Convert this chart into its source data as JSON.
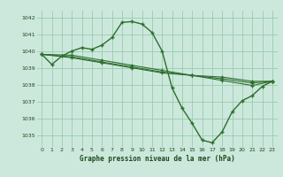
{
  "title": "Graphe pression niveau de la mer (hPa)",
  "bg_color": "#cce8dd",
  "grid_color": "#99ccaa",
  "line_color": "#2d6e2d",
  "marker_color": "#2d6e2d",
  "ylim": [
    1034.3,
    1042.4
  ],
  "xlim": [
    -0.5,
    23.5
  ],
  "yticks": [
    1035,
    1036,
    1037,
    1038,
    1039,
    1040,
    1041,
    1042
  ],
  "xticks": [
    0,
    1,
    2,
    3,
    4,
    5,
    6,
    7,
    8,
    9,
    10,
    11,
    12,
    13,
    14,
    15,
    16,
    17,
    18,
    19,
    20,
    21,
    22,
    23
  ],
  "series1_x": [
    0,
    1,
    2,
    3,
    4,
    5,
    6,
    7,
    8,
    9,
    10,
    11,
    12,
    13,
    14,
    15,
    16,
    17,
    18,
    19,
    20,
    21,
    22,
    23
  ],
  "series1_y": [
    1039.8,
    1039.2,
    1039.7,
    1040.0,
    1040.2,
    1040.1,
    1040.35,
    1040.8,
    1041.7,
    1041.75,
    1041.6,
    1041.1,
    1040.0,
    1037.8,
    1036.6,
    1035.7,
    1034.7,
    1034.55,
    1035.2,
    1036.4,
    1037.05,
    1037.35,
    1037.9,
    1038.2
  ],
  "series2_x": [
    0,
    3,
    6,
    9,
    12,
    15,
    18,
    21,
    23
  ],
  "series2_y": [
    1039.8,
    1039.75,
    1039.45,
    1039.15,
    1038.85,
    1038.55,
    1038.25,
    1037.95,
    1038.2
  ],
  "series3_x": [
    0,
    3,
    6,
    9,
    12,
    15,
    18,
    21,
    23
  ],
  "series3_y": [
    1039.8,
    1039.65,
    1039.35,
    1039.05,
    1038.75,
    1038.55,
    1038.35,
    1038.1,
    1038.2
  ],
  "series4_x": [
    0,
    3,
    6,
    9,
    12,
    15,
    18,
    21,
    23
  ],
  "series4_y": [
    1039.8,
    1039.6,
    1039.3,
    1039.0,
    1038.7,
    1038.55,
    1038.45,
    1038.2,
    1038.2
  ]
}
